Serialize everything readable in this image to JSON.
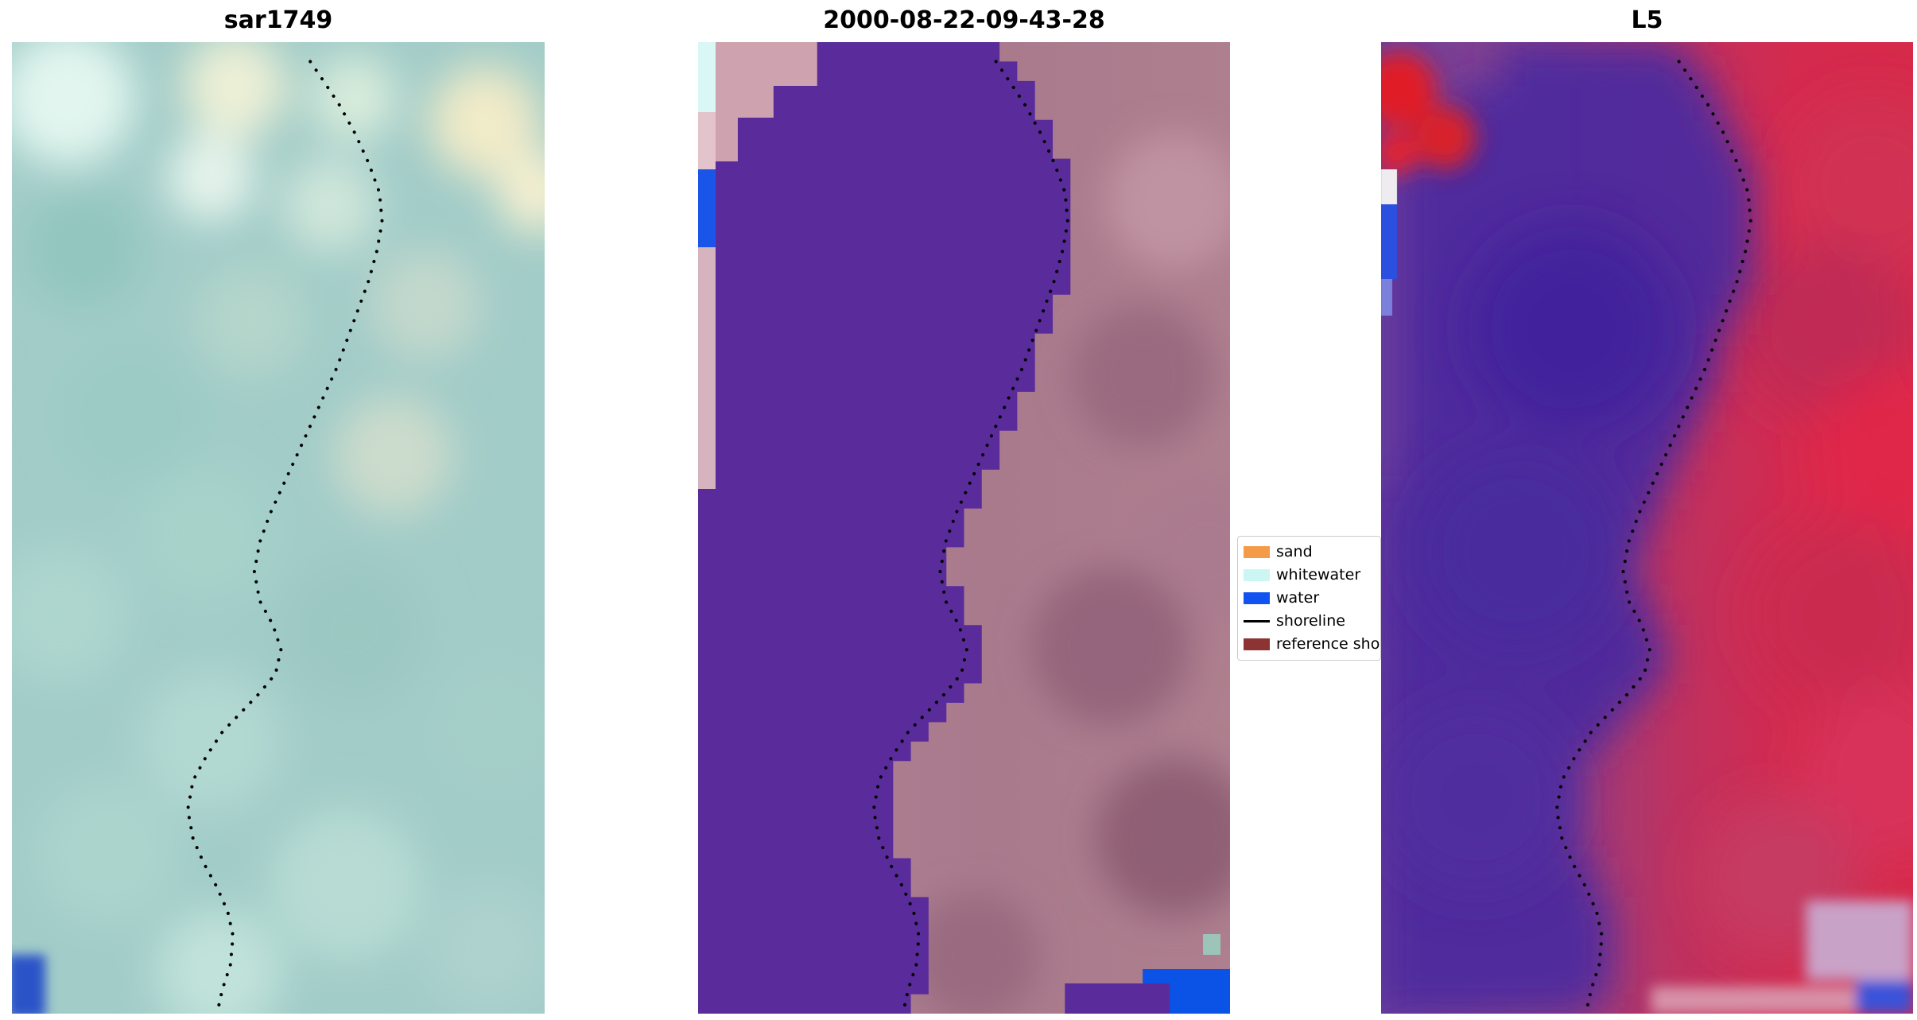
{
  "panels": [
    {
      "title": "sar1749"
    },
    {
      "title": "2000-08-22-09-43-28"
    },
    {
      "title": "L5"
    }
  ],
  "legend": {
    "items": [
      {
        "label": "sand",
        "color": "#f59a49",
        "swatch": "patch"
      },
      {
        "label": "whitewater",
        "color": "#ccf6f4",
        "swatch": "patch"
      },
      {
        "label": "water",
        "color": "#1153f0",
        "swatch": "patch"
      },
      {
        "label": "shoreline",
        "color": "#000000",
        "swatch": "line"
      },
      {
        "label": "reference shoreline",
        "color": "#8c3434",
        "swatch": "patch"
      }
    ]
  },
  "colors": {
    "water_mask": "#5a2b9b",
    "shoreline_dots": "#000000",
    "background": "#ffffff"
  },
  "shoreline": {
    "points": [
      [
        0.56,
        0.02
      ],
      [
        0.585,
        0.04
      ],
      [
        0.615,
        0.065
      ],
      [
        0.645,
        0.095
      ],
      [
        0.67,
        0.125
      ],
      [
        0.69,
        0.155
      ],
      [
        0.695,
        0.185
      ],
      [
        0.685,
        0.215
      ],
      [
        0.67,
        0.245
      ],
      [
        0.65,
        0.275
      ],
      [
        0.63,
        0.305
      ],
      [
        0.61,
        0.335
      ],
      [
        0.585,
        0.365
      ],
      [
        0.56,
        0.395
      ],
      [
        0.535,
        0.425
      ],
      [
        0.51,
        0.455
      ],
      [
        0.485,
        0.485
      ],
      [
        0.465,
        0.515
      ],
      [
        0.455,
        0.545
      ],
      [
        0.465,
        0.575
      ],
      [
        0.49,
        0.6
      ],
      [
        0.505,
        0.625
      ],
      [
        0.495,
        0.65
      ],
      [
        0.465,
        0.67
      ],
      [
        0.43,
        0.69
      ],
      [
        0.395,
        0.71
      ],
      [
        0.365,
        0.735
      ],
      [
        0.34,
        0.76
      ],
      [
        0.33,
        0.79
      ],
      [
        0.34,
        0.82
      ],
      [
        0.36,
        0.845
      ],
      [
        0.385,
        0.87
      ],
      [
        0.405,
        0.895
      ],
      [
        0.415,
        0.92
      ],
      [
        0.41,
        0.95
      ],
      [
        0.395,
        0.975
      ],
      [
        0.385,
        1.0
      ]
    ]
  }
}
